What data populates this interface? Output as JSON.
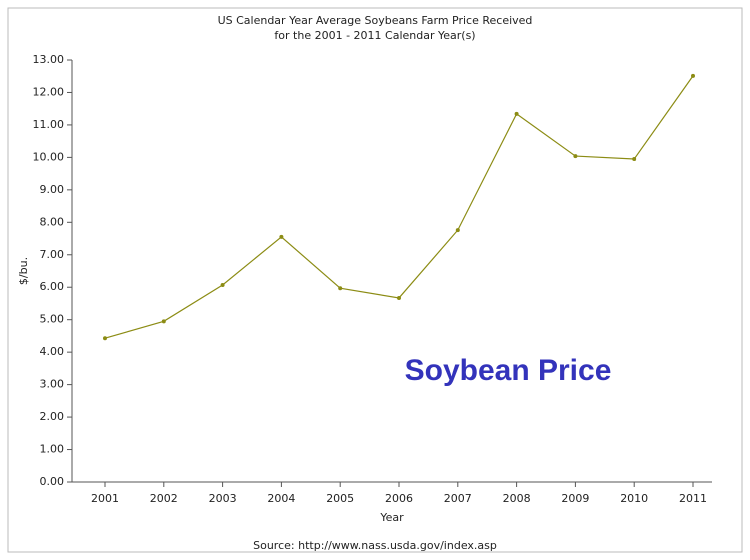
{
  "chart_data": {
    "type": "line",
    "title": "US Calendar Year Average Soybeans Farm Price Received",
    "subtitle": "for the 2001 - 2011 Calendar Year(s)",
    "x_label": "Year",
    "y_label": "$/bu.",
    "annotation": "Soybean Price",
    "source": "Source: http://www.nass.usda.gov/index.asp",
    "categories": [
      "2001",
      "2002",
      "2003",
      "2004",
      "2005",
      "2006",
      "2007",
      "2008",
      "2009",
      "2010",
      "2011"
    ],
    "series": [
      {
        "name": "Soybeans",
        "color": "#8c8c14",
        "values": [
          4.43,
          4.95,
          6.07,
          7.55,
          5.97,
          5.67,
          7.76,
          11.34,
          10.04,
          9.95,
          12.51
        ]
      }
    ],
    "ylim": [
      0,
      13
    ],
    "yticks": [
      {
        "value": 0,
        "label": "0.00"
      },
      {
        "value": 1,
        "label": "1.00"
      },
      {
        "value": 2,
        "label": "2.00"
      },
      {
        "value": 3,
        "label": "3.00"
      },
      {
        "value": 4,
        "label": "4.00"
      },
      {
        "value": 5,
        "label": "5.00"
      },
      {
        "value": 6,
        "label": "6.00"
      },
      {
        "value": 7,
        "label": "7.00"
      },
      {
        "value": 8,
        "label": "8.00"
      },
      {
        "value": 9,
        "label": "9.00"
      },
      {
        "value": 10,
        "label": "10.00"
      },
      {
        "value": 11,
        "label": "11.00"
      },
      {
        "value": 12,
        "label": "12.00"
      },
      {
        "value": 13,
        "label": "13.00"
      }
    ],
    "grid": false
  }
}
